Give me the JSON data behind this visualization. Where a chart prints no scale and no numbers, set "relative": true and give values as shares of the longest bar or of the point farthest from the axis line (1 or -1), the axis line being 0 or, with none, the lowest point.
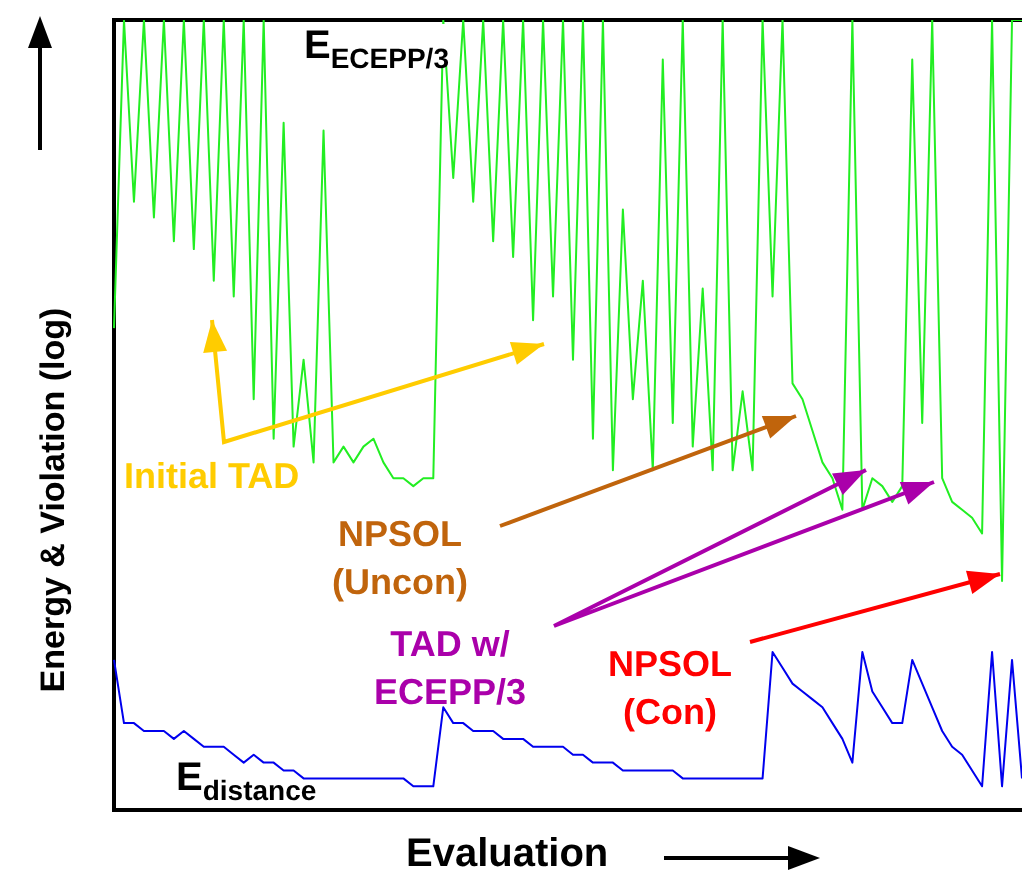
{
  "chart_data": {
    "type": "line",
    "relative": true,
    "xlabel": "Evaluation",
    "ylabel": "Energy & Violation (log)",
    "categories": [
      null,
      null,
      null,
      null,
      null,
      null,
      null,
      null,
      null,
      null,
      null,
      null,
      null,
      null,
      null,
      null,
      null,
      null,
      null,
      null,
      null,
      null,
      null,
      null,
      null,
      null,
      null,
      null,
      null,
      null,
      null,
      null,
      null,
      null,
      null,
      null,
      null,
      null,
      null,
      null,
      null,
      null,
      null,
      null,
      null,
      null,
      null,
      null,
      null,
      null,
      null,
      null,
      null,
      null,
      null,
      null,
      null,
      null,
      null,
      null,
      null,
      null,
      null,
      null,
      null,
      null,
      null,
      null,
      null,
      null,
      null,
      null,
      null,
      null,
      null,
      null,
      null,
      null,
      null,
      null,
      null,
      null,
      null,
      null,
      null,
      null,
      null,
      null,
      null,
      null,
      null,
      null
    ],
    "series": [
      {
        "name": "E$_{ECEPP/3}$",
        "color": "#22ee22",
        "values": [
          0.61,
          1,
          0.77,
          1,
          0.75,
          1,
          0.72,
          1,
          0.71,
          1,
          0.67,
          1,
          0.65,
          1,
          0.52,
          1,
          0.47,
          0.87,
          0.46,
          0.57,
          0.44,
          0.86,
          0.44,
          0.46,
          0.44,
          0.46,
          0.47,
          0.44,
          0.42,
          0.42,
          0.41,
          0.42,
          0.42,
          1,
          0.8,
          1,
          0.77,
          1,
          0.72,
          1,
          0.7,
          1,
          0.62,
          1,
          0.65,
          1,
          0.57,
          1,
          0.47,
          1,
          0.43,
          0.76,
          0.52,
          0.67,
          0.43,
          0.95,
          0.49,
          1,
          0.46,
          0.66,
          0.43,
          1,
          0.43,
          0.53,
          0.43,
          1,
          0.65,
          1,
          0.54,
          0.52,
          0.48,
          0.44,
          0.42,
          0.38,
          1,
          0.38,
          0.42,
          0.41,
          0.39,
          0.41,
          0.95,
          0.49,
          1,
          0.42,
          0.39,
          0.38,
          0.37,
          0.35,
          1,
          0.29,
          1,
          1
        ]
      },
      {
        "name": "E$_{distance}$",
        "color": "#0000ee",
        "values": [
          0.19,
          0.11,
          0.11,
          0.1,
          0.1,
          0.1,
          0.09,
          0.1,
          0.09,
          0.08,
          0.08,
          0.08,
          0.07,
          0.06,
          0.07,
          0.06,
          0.06,
          0.05,
          0.05,
          0.04,
          0.04,
          0.04,
          0.04,
          0.04,
          0.04,
          0.04,
          0.04,
          0.04,
          0.04,
          0.04,
          0.03,
          0.03,
          0.03,
          0.13,
          0.11,
          0.11,
          0.1,
          0.1,
          0.1,
          0.09,
          0.09,
          0.09,
          0.08,
          0.08,
          0.08,
          0.08,
          0.07,
          0.07,
          0.06,
          0.06,
          0.06,
          0.05,
          0.05,
          0.05,
          0.05,
          0.05,
          0.05,
          0.04,
          0.04,
          0.04,
          0.04,
          0.04,
          0.04,
          0.04,
          0.04,
          0.04,
          0.2,
          0.18,
          0.16,
          0.15,
          0.14,
          0.13,
          0.11,
          0.09,
          0.06,
          0.2,
          0.15,
          0.13,
          0.11,
          0.11,
          0.19,
          0.16,
          0.13,
          0.1,
          0.08,
          0.07,
          0.05,
          0.03,
          0.2,
          0.03,
          0.19,
          0.04
        ]
      }
    ],
    "annotations": [
      "Initial TAD",
      "NPSOL (Uncon)",
      "TAD w/ ECEPP/3",
      "NPSOL (Con)"
    ]
  }
}
